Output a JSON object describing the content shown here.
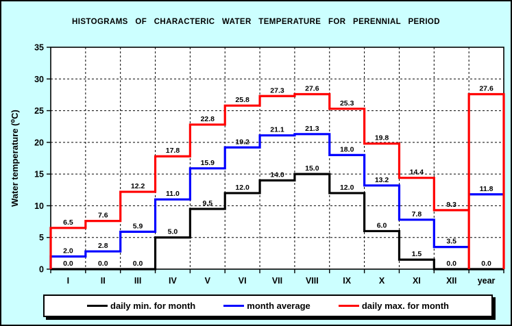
{
  "window": {
    "background_color": "#ccffff",
    "plot_background_color": "#ffffff"
  },
  "header": {
    "title": "HISTOGRAMS OF CHARACTERIC WATER TEMPERATURE FOR PERENNIAL PERIOD"
  },
  "chart_data": {
    "type": "line",
    "subtype": "step-histogram-outline",
    "title": "HISTOGRAMS OF CHARACTERIC WATER TEMPERATURE FOR PERENNIAL PERIOD",
    "xlabel": "",
    "ylabel": "Water temperature (⁰C)",
    "categories": [
      "I",
      "II",
      "III",
      "IV",
      "V",
      "VI",
      "VII",
      "VIII",
      "IX",
      "X",
      "XI",
      "XII",
      "year"
    ],
    "series": [
      {
        "name": "daily min. for month",
        "color": "#000000",
        "values": [
          0.0,
          0.0,
          0.0,
          5.0,
          9.5,
          12.0,
          14.0,
          15.0,
          12.0,
          6.0,
          1.5,
          0.0,
          0.0
        ]
      },
      {
        "name": "month average",
        "color": "#0000ff",
        "values": [
          2.0,
          2.8,
          5.9,
          11.0,
          15.9,
          19.2,
          21.1,
          21.3,
          18.0,
          13.2,
          7.8,
          3.5,
          11.8
        ]
      },
      {
        "name": "daily max. for month",
        "color": "#ff0000",
        "values": [
          6.5,
          7.6,
          12.2,
          17.8,
          22.8,
          25.8,
          27.3,
          27.6,
          25.3,
          19.8,
          14.4,
          9.3,
          27.6
        ]
      }
    ],
    "ylim": [
      0,
      35
    ],
    "yticks": [
      0,
      5,
      10,
      15,
      20,
      25,
      30,
      35
    ],
    "grid": "dashed-black",
    "legend_position": "bottom",
    "data_labels_decimals": 1
  }
}
